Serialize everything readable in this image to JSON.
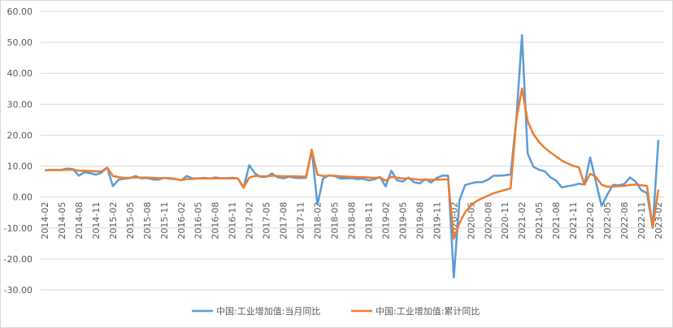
{
  "chart_data": {
    "type": "line",
    "categories": [
      "2014-02",
      null,
      null,
      "2014-05",
      null,
      null,
      "2014-08",
      null,
      null,
      "2014-11",
      null,
      null,
      "2015-02",
      null,
      null,
      "2015-05",
      null,
      null,
      "2015-08",
      null,
      null,
      "2015-11",
      null,
      null,
      "2016-02",
      null,
      null,
      "2016-05",
      null,
      null,
      "2016-08",
      null,
      null,
      "2016-11",
      null,
      null,
      "2017-02",
      null,
      null,
      "2017-05",
      null,
      null,
      "2017-08",
      null,
      null,
      "2017-11",
      null,
      null,
      "2018-02",
      null,
      null,
      "2018-05",
      null,
      null,
      "2018-08",
      null,
      null,
      "2018-11",
      null,
      null,
      "2019-02",
      null,
      null,
      "2019-05",
      null,
      null,
      "2019-08",
      null,
      null,
      "2019-11",
      null,
      null,
      "2020-02",
      null,
      null,
      "2020-05",
      null,
      null,
      "2020-08",
      null,
      null,
      "2020-11",
      null,
      null,
      "2021-02",
      null,
      null,
      "2021-05",
      null,
      null,
      "2021-08",
      null,
      null,
      "2021-11",
      null,
      null,
      "2022-02",
      null,
      null,
      "2022-05",
      null,
      null,
      "2022-08",
      null,
      null,
      "2022-11",
      null,
      null,
      "2023-02"
    ],
    "series": [
      {
        "name": "中国:工业增加值:当月同比",
        "color": "#5b9bd5",
        "values": [
          8.6,
          8.8,
          8.7,
          8.8,
          9.2,
          9.0,
          6.9,
          8.0,
          7.7,
          7.2,
          7.9,
          9.5,
          3.5,
          5.6,
          5.9,
          6.1,
          6.8,
          6.0,
          6.1,
          5.7,
          5.6,
          6.2,
          5.9,
          5.8,
          5.4,
          6.8,
          6.0,
          6.0,
          6.2,
          6.0,
          6.3,
          6.1,
          6.1,
          6.2,
          6.0,
          3.0,
          10.3,
          7.6,
          6.5,
          6.5,
          7.6,
          6.4,
          6.0,
          6.6,
          6.2,
          6.1,
          6.2,
          15.3,
          -2.5,
          6.0,
          7.0,
          6.8,
          6.0,
          6.0,
          6.1,
          5.8,
          5.9,
          5.4,
          5.7,
          6.5,
          3.4,
          8.5,
          5.4,
          5.0,
          6.3,
          4.8,
          4.4,
          5.8,
          4.7,
          6.2,
          6.9,
          6.9,
          -26.0,
          -1.1,
          3.9,
          4.4,
          4.8,
          4.8,
          5.6,
          6.9,
          6.9,
          7.0,
          7.3,
          25.0,
          52.3,
          14.1,
          9.8,
          8.8,
          8.3,
          6.4,
          5.3,
          3.1,
          3.5,
          3.8,
          4.3,
          4.0,
          12.8,
          5.0,
          -2.9,
          0.7,
          3.9,
          3.8,
          4.2,
          6.3,
          5.0,
          2.2,
          1.3,
          -10.0,
          18.5
        ]
      },
      {
        "name": "中国:工业增加值:累计同比",
        "color": "#ed7d31",
        "values": [
          8.6,
          8.7,
          8.7,
          8.7,
          8.8,
          8.8,
          8.5,
          8.5,
          8.4,
          8.3,
          8.3,
          9.5,
          6.8,
          6.4,
          6.2,
          6.2,
          6.3,
          6.3,
          6.3,
          6.2,
          6.1,
          6.1,
          6.1,
          5.9,
          5.4,
          5.8,
          5.8,
          6.0,
          6.0,
          6.0,
          6.0,
          6.0,
          6.0,
          6.0,
          6.0,
          3.0,
          6.3,
          6.8,
          6.7,
          6.7,
          6.9,
          6.8,
          6.7,
          6.7,
          6.7,
          6.6,
          6.6,
          15.3,
          7.2,
          6.8,
          6.9,
          6.9,
          6.7,
          6.6,
          6.5,
          6.4,
          6.4,
          6.3,
          6.2,
          6.3,
          5.3,
          6.5,
          6.2,
          6.0,
          6.0,
          5.8,
          5.6,
          5.6,
          5.6,
          5.6,
          5.7,
          5.7,
          -13.5,
          -8.4,
          -4.9,
          -2.8,
          -1.3,
          -0.4,
          0.4,
          1.2,
          1.8,
          2.3,
          2.8,
          25.0,
          35.1,
          24.5,
          20.3,
          17.8,
          15.9,
          14.4,
          13.1,
          11.8,
          10.9,
          10.1,
          9.6,
          4.0,
          7.5,
          6.5,
          4.0,
          3.3,
          3.4,
          3.5,
          3.6,
          3.9,
          4.0,
          3.8,
          3.6,
          -10.0,
          2.4
        ]
      }
    ],
    "ylim": [
      -30,
      60
    ],
    "yticks": [
      {
        "value": -30,
        "label": "-30.00"
      },
      {
        "value": -20,
        "label": "-20.00"
      },
      {
        "value": -10,
        "label": "-10.00"
      },
      {
        "value": 0,
        "label": "0.00"
      },
      {
        "value": 10,
        "label": "10.00"
      },
      {
        "value": 20,
        "label": "20.00"
      },
      {
        "value": 30,
        "label": "30.00"
      },
      {
        "value": 40,
        "label": "40.00"
      },
      {
        "value": 50,
        "label": "50.00"
      },
      {
        "value": 60,
        "label": "60.00"
      }
    ],
    "grid": true,
    "legend": "bottom"
  }
}
